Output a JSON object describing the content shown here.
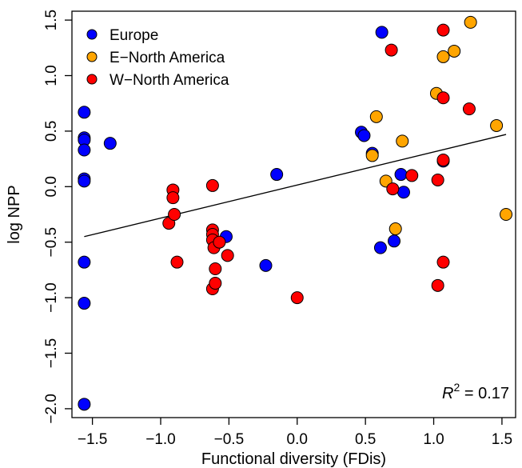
{
  "chart_data": {
    "type": "scatter",
    "title": "",
    "xlabel": "Functional diversity (FDis)",
    "ylabel": "log NPP",
    "xlim": [
      -1.65,
      1.6
    ],
    "ylim": [
      -2.08,
      1.58
    ],
    "x_ticks": [
      -1.5,
      -1.0,
      -0.5,
      0.0,
      0.5,
      1.0,
      1.5
    ],
    "x_tick_labels": [
      "−1.5",
      "−1.0",
      "−0.5",
      "0.0",
      "0.5",
      "1.0",
      "1.5"
    ],
    "y_ticks": [
      -2.0,
      -1.5,
      -1.0,
      -0.5,
      0.0,
      0.5,
      1.0,
      1.5
    ],
    "y_tick_labels": [
      "−2.0",
      "−1.5",
      "−1.0",
      "−0.5",
      "0.0",
      "0.5",
      "1.0",
      "1.5"
    ],
    "grid": false,
    "legend_position": "top-left",
    "annotation": {
      "base": "R",
      "sup": "2",
      "rest": " = 0.17"
    },
    "regression_line": {
      "x": [
        -1.56,
        1.53
      ],
      "y": [
        -0.45,
        0.47
      ]
    },
    "series": [
      {
        "name": "Europe",
        "color": "#0000ff",
        "points": [
          [
            -1.56,
            0.67
          ],
          [
            -1.56,
            0.44
          ],
          [
            -1.56,
            0.42
          ],
          [
            -1.56,
            0.33
          ],
          [
            -1.56,
            0.07
          ],
          [
            -1.56,
            0.05
          ],
          [
            -1.37,
            0.39
          ],
          [
            -1.56,
            -0.68
          ],
          [
            -1.56,
            -1.05
          ],
          [
            -1.56,
            -1.96
          ],
          [
            -0.52,
            -0.45
          ],
          [
            -0.23,
            -0.71
          ],
          [
            -0.15,
            0.11
          ],
          [
            0.47,
            0.49
          ],
          [
            0.49,
            0.46
          ],
          [
            0.55,
            0.3
          ],
          [
            0.61,
            -0.55
          ],
          [
            0.62,
            1.39
          ],
          [
            0.71,
            -0.49
          ],
          [
            0.76,
            0.11
          ],
          [
            0.78,
            -0.05
          ],
          [
            1.07,
            0.23
          ]
        ]
      },
      {
        "name": "E−North America",
        "color": "#ffa500",
        "points": [
          [
            0.55,
            0.28
          ],
          [
            0.58,
            0.63
          ],
          [
            0.65,
            0.05
          ],
          [
            0.72,
            -0.38
          ],
          [
            0.77,
            0.41
          ],
          [
            1.02,
            0.84
          ],
          [
            1.07,
            1.17
          ],
          [
            1.15,
            1.22
          ],
          [
            1.27,
            1.48
          ],
          [
            1.46,
            0.55
          ],
          [
            1.53,
            -0.25
          ]
        ]
      },
      {
        "name": "W−North America",
        "color": "#ff0000",
        "points": [
          [
            -0.94,
            -0.33
          ],
          [
            -0.91,
            -0.03
          ],
          [
            -0.91,
            -0.1
          ],
          [
            -0.9,
            -0.25
          ],
          [
            -0.88,
            -0.68
          ],
          [
            -0.62,
            0.01
          ],
          [
            -0.62,
            -0.39
          ],
          [
            -0.62,
            -0.43
          ],
          [
            -0.62,
            -0.48
          ],
          [
            -0.61,
            -0.55
          ],
          [
            -0.6,
            -0.74
          ],
          [
            -0.62,
            -0.92
          ],
          [
            -0.6,
            -0.87
          ],
          [
            -0.57,
            -0.5
          ],
          [
            -0.51,
            -0.62
          ],
          [
            0.0,
            -1.0
          ],
          [
            0.69,
            1.23
          ],
          [
            0.7,
            -0.02
          ],
          [
            0.84,
            0.1
          ],
          [
            1.03,
            0.06
          ],
          [
            1.03,
            -0.89
          ],
          [
            1.07,
            1.41
          ],
          [
            1.07,
            0.8
          ],
          [
            1.07,
            0.24
          ],
          [
            1.07,
            -0.68
          ],
          [
            1.26,
            0.7
          ]
        ]
      }
    ]
  }
}
